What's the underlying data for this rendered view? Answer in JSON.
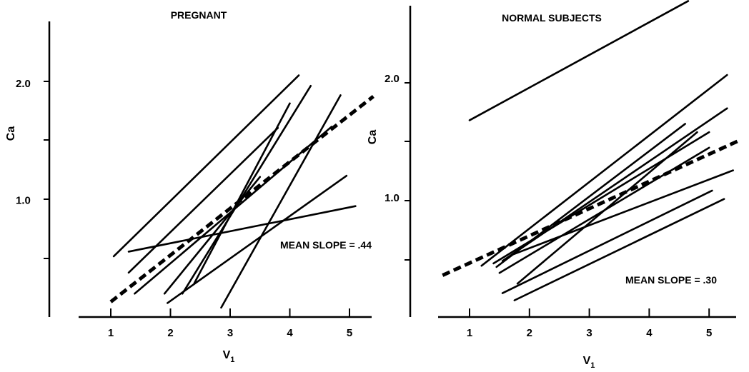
{
  "chart_data": [
    {
      "type": "line",
      "title": "PREGNANT",
      "xlabel": "V",
      "xlabel_sub": "1",
      "ylabel": "Ca",
      "xticks": [
        1,
        2,
        3,
        4,
        5
      ],
      "yticks": [
        1.0,
        2.0
      ],
      "ytick_labels": [
        "1.0",
        "2.0"
      ],
      "xlim": [
        0.55,
        5.6
      ],
      "ylim": [
        0.0,
        2.6
      ],
      "annotation": "MEAN SLOPE = .44",
      "mean_slope": 0.44,
      "mean_line": {
        "x": [
          1.0,
          5.4
        ],
        "y": [
          0.13,
          1.89
        ]
      },
      "series": [
        {
          "x": [
            1.05,
            4.15
          ],
          "y": [
            0.52,
            2.07
          ]
        },
        {
          "x": [
            1.3,
            5.1
          ],
          "y": [
            0.56,
            0.95
          ]
        },
        {
          "x": [
            1.3,
            3.8
          ],
          "y": [
            0.38,
            1.62
          ]
        },
        {
          "x": [
            1.4,
            4.7
          ],
          "y": [
            0.2,
            1.63
          ]
        },
        {
          "x": [
            1.9,
            3.5
          ],
          "y": [
            0.2,
            1.2
          ]
        },
        {
          "x": [
            1.95,
            4.95
          ],
          "y": [
            0.12,
            1.21
          ]
        },
        {
          "x": [
            2.2,
            4.35
          ],
          "y": [
            0.2,
            1.98
          ]
        },
        {
          "x": [
            2.4,
            4.0
          ],
          "y": [
            0.29,
            1.83
          ]
        },
        {
          "x": [
            2.85,
            4.85
          ],
          "y": [
            0.08,
            1.9
          ]
        }
      ]
    },
    {
      "type": "line",
      "title": "NORMAL SUBJECTS",
      "xlabel": "V",
      "xlabel_sub": "1",
      "ylabel": "Ca",
      "xticks": [
        1,
        2,
        3,
        4,
        5
      ],
      "yticks": [
        1.0,
        2.0
      ],
      "ytick_labels": [
        "1.0",
        "2.0"
      ],
      "xlim": [
        0.55,
        5.5
      ],
      "ylim": [
        0.0,
        2.6
      ],
      "annotation": "MEAN SLOPE = .30",
      "mean_slope": 0.3,
      "mean_line": {
        "x": [
          0.55,
          5.5
        ],
        "y": [
          0.35,
          1.48
        ]
      },
      "series": [
        {
          "x": [
            1.0,
            4.65
          ],
          "y": [
            1.65,
            2.65
          ]
        },
        {
          "x": [
            1.2,
            5.3
          ],
          "y": [
            0.43,
            2.03
          ]
        },
        {
          "x": [
            1.4,
            5.0
          ],
          "y": [
            0.45,
            1.55
          ]
        },
        {
          "x": [
            1.55,
            5.3
          ],
          "y": [
            0.47,
            1.75
          ]
        },
        {
          "x": [
            1.5,
            5.0
          ],
          "y": [
            0.37,
            1.42
          ]
        },
        {
          "x": [
            1.7,
            5.4
          ],
          "y": [
            0.52,
            1.23
          ]
        },
        {
          "x": [
            1.45,
            4.6
          ],
          "y": [
            0.42,
            1.62
          ]
        },
        {
          "x": [
            1.8,
            4.8
          ],
          "y": [
            0.28,
            1.55
          ]
        },
        {
          "x": [
            1.55,
            5.05
          ],
          "y": [
            0.2,
            1.06
          ]
        },
        {
          "x": [
            1.75,
            5.25
          ],
          "y": [
            0.14,
            0.99
          ]
        }
      ]
    }
  ]
}
